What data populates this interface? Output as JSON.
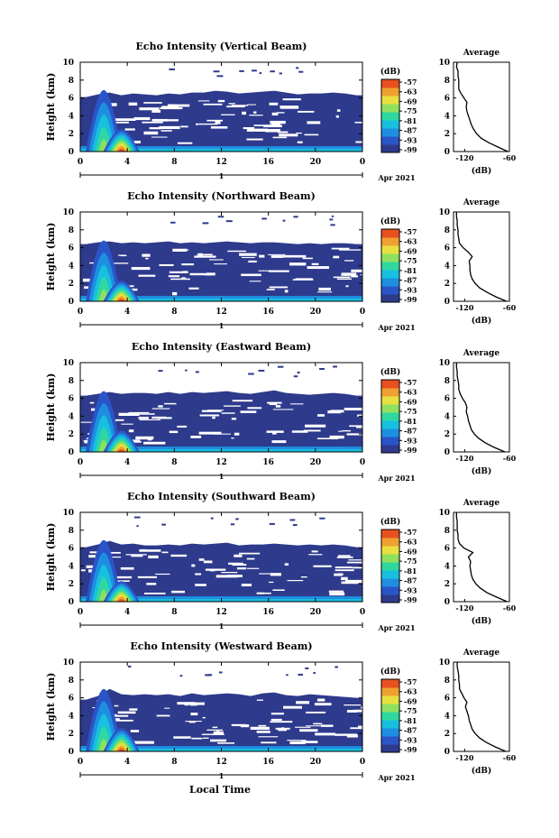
{
  "figure": {
    "xlabel": "Local Time"
  },
  "panels_common": {
    "ylabel": "Height (km)",
    "yticks": [
      "0",
      "2",
      "4",
      "6",
      "8",
      "10"
    ],
    "xticks": [
      "0",
      "4",
      "8",
      "12",
      "16",
      "20",
      "0"
    ],
    "date_mark": "1",
    "date_text": "Apr 2021",
    "colorbar_unit": "(dB)",
    "colorbar_ticks": [
      "-57",
      "-63",
      "-69",
      "-75",
      "-81",
      "-87",
      "-93",
      "-99"
    ],
    "avg_title": "Average",
    "avg_xticks": [
      "-120",
      "-60"
    ],
    "avg_xlabel": "(dB)"
  },
  "colors": {
    "background": "#ffffff",
    "low_echo": "#2e3a8c",
    "colormap": [
      "#2e3a8c",
      "#2a55c8",
      "#1e8fe0",
      "#18c0e0",
      "#30d8a0",
      "#90e060",
      "#e8e040",
      "#f0a030",
      "#e85020"
    ]
  },
  "chart_data": [
    {
      "type": "heatmap",
      "title": "Echo Intensity (Vertical Beam)",
      "xlabel": "",
      "ylabel": "Height (km)",
      "xlim": [
        0,
        24
      ],
      "ylim": [
        0,
        10
      ],
      "colorbar_range": [
        -99,
        -57
      ],
      "top_km": [
        6.1,
        6.4,
        6.6,
        6.3,
        6.5,
        6.4,
        6.3,
        6.5,
        6.4,
        6.6,
        6.6,
        6.8,
        6.7,
        6.5,
        6.6,
        6.7,
        6.8,
        6.6,
        6.4,
        6.5,
        6.5,
        6.6,
        6.5,
        6.3
      ],
      "convection": [
        {
          "t": 2,
          "top": 6.9,
          "peak": -57
        },
        {
          "t": 3.5,
          "top": 2.5,
          "peak": -69
        }
      ],
      "average_profile": {
        "xlim": [
          -135,
          -60
        ],
        "height_km": [
          0,
          0.5,
          1,
          1.5,
          2,
          2.5,
          3,
          3.5,
          4,
          4.5,
          5,
          5.5,
          6,
          6.5,
          7,
          7.5,
          8,
          8.5,
          9,
          9.5,
          10
        ],
        "db": [
          -62,
          -75,
          -88,
          -98,
          -104,
          -108,
          -111,
          -113,
          -115,
          -117,
          -118,
          -117,
          -121,
          -125,
          -128,
          -128,
          -128,
          -129,
          -129,
          -131,
          -130
        ]
      }
    },
    {
      "type": "heatmap",
      "title": "Echo Intensity (Northward Beam)",
      "xlabel": "",
      "ylabel": "Height (km)",
      "xlim": [
        0,
        24
      ],
      "ylim": [
        0,
        10
      ],
      "colorbar_range": [
        -99,
        -57
      ],
      "top_km": [
        6.4,
        6.6,
        6.7,
        6.5,
        6.6,
        6.5,
        6.6,
        6.7,
        6.5,
        6.6,
        6.5,
        6.6,
        6.7,
        6.6,
        6.5,
        6.6,
        6.6,
        6.5,
        6.4,
        6.5,
        6.4,
        6.5,
        6.5,
        6.4
      ],
      "convection": [
        {
          "t": 2,
          "top": 6.8,
          "peak": -57
        },
        {
          "t": 3.5,
          "top": 2.3,
          "peak": -69
        }
      ],
      "average_profile": {
        "xlim": [
          -135,
          -60
        ],
        "height_km": [
          0,
          0.5,
          1,
          1.5,
          2,
          2.5,
          3,
          3.5,
          4,
          4.5,
          5,
          5.5,
          6,
          6.5,
          7,
          7.5,
          8,
          8.5,
          9,
          9.5,
          10
        ],
        "db": [
          -64,
          -78,
          -90,
          -100,
          -106,
          -110,
          -112,
          -113,
          -113,
          -114,
          -110,
          -115,
          -122,
          -127,
          -128,
          -129,
          -129,
          -130,
          -130,
          -131,
          -131
        ]
      }
    },
    {
      "type": "heatmap",
      "title": "Echo Intensity (Eastward Beam)",
      "xlabel": "",
      "ylabel": "Height (km)",
      "xlim": [
        0,
        24
      ],
      "ylim": [
        0,
        10
      ],
      "colorbar_range": [
        -99,
        -57
      ],
      "top_km": [
        6.3,
        6.5,
        6.7,
        6.5,
        6.6,
        6.6,
        6.5,
        6.7,
        6.5,
        6.7,
        6.6,
        6.7,
        6.8,
        6.6,
        6.5,
        6.7,
        6.9,
        6.6,
        6.5,
        6.4,
        6.5,
        6.6,
        6.5,
        6.3
      ],
      "convection": [
        {
          "t": 2,
          "top": 6.8,
          "peak": -57
        },
        {
          "t": 3.5,
          "top": 2.4,
          "peak": -69
        }
      ],
      "average_profile": {
        "xlim": [
          -135,
          -60
        ],
        "height_km": [
          0,
          0.5,
          1,
          1.5,
          2,
          2.5,
          3,
          3.5,
          4,
          4.5,
          5,
          5.5,
          6,
          6.5,
          7,
          7.5,
          8,
          8.5,
          9,
          9.5,
          10
        ],
        "db": [
          -66,
          -80,
          -92,
          -101,
          -107,
          -111,
          -113,
          -115,
          -116,
          -118,
          -117,
          -119,
          -123,
          -126,
          -128,
          -128,
          -129,
          -130,
          -130,
          -131,
          -131
        ]
      }
    },
    {
      "type": "heatmap",
      "title": "Echo Intensity (Southward Beam)",
      "xlabel": "",
      "ylabel": "Height (km)",
      "xlim": [
        0,
        24
      ],
      "ylim": [
        0,
        10
      ],
      "colorbar_range": [
        -99,
        -57
      ],
      "top_km": [
        6.1,
        6.4,
        6.8,
        6.4,
        6.5,
        6.3,
        6.3,
        6.4,
        6.3,
        6.5,
        6.4,
        6.5,
        6.6,
        6.3,
        6.4,
        6.4,
        6.5,
        6.4,
        6.3,
        6.4,
        6.3,
        6.4,
        6.3,
        6.1
      ],
      "convection": [
        {
          "t": 2,
          "top": 6.9,
          "peak": -57
        },
        {
          "t": 3.5,
          "top": 2.3,
          "peak": -69
        }
      ],
      "average_profile": {
        "xlim": [
          -135,
          -60
        ],
        "height_km": [
          0,
          0.5,
          1,
          1.5,
          2,
          2.5,
          3,
          3.5,
          4,
          4.5,
          5,
          5.5,
          6,
          6.5,
          7,
          7.5,
          8,
          8.5,
          9,
          9.5,
          10
        ],
        "db": [
          -63,
          -77,
          -90,
          -99,
          -105,
          -109,
          -111,
          -112,
          -113,
          -112,
          -115,
          -109,
          -121,
          -127,
          -129,
          -129,
          -130,
          -130,
          -130,
          -131,
          -131
        ]
      }
    },
    {
      "type": "heatmap",
      "title": "Echo Intensity (Westward Beam)",
      "xlabel": "Local Time",
      "ylabel": "Height (km)",
      "xlim": [
        0,
        24
      ],
      "ylim": [
        0,
        10
      ],
      "colorbar_range": [
        -99,
        -57
      ],
      "top_km": [
        5.8,
        6.2,
        7.0,
        6.4,
        6.3,
        6.4,
        6.3,
        6.4,
        6.2,
        6.5,
        6.3,
        6.4,
        6.5,
        6.4,
        6.2,
        6.5,
        6.6,
        6.3,
        6.2,
        6.4,
        6.3,
        6.2,
        6.1,
        6.0
      ],
      "convection": [
        {
          "t": 2,
          "top": 7.0,
          "peak": -57
        },
        {
          "t": 3.5,
          "top": 2.6,
          "peak": -69
        }
      ],
      "average_profile": {
        "xlim": [
          -135,
          -60
        ],
        "height_km": [
          0,
          0.5,
          1,
          1.5,
          2,
          2.5,
          3,
          3.5,
          4,
          4.5,
          5,
          5.5,
          6,
          6.5,
          7,
          7.5,
          8,
          8.5,
          9,
          9.5,
          10
        ],
        "db": [
          -65,
          -79,
          -91,
          -100,
          -106,
          -110,
          -112,
          -114,
          -115,
          -117,
          -119,
          -117,
          -121,
          -124,
          -127,
          -127,
          -128,
          -128,
          -129,
          -130,
          -130
        ]
      }
    }
  ]
}
